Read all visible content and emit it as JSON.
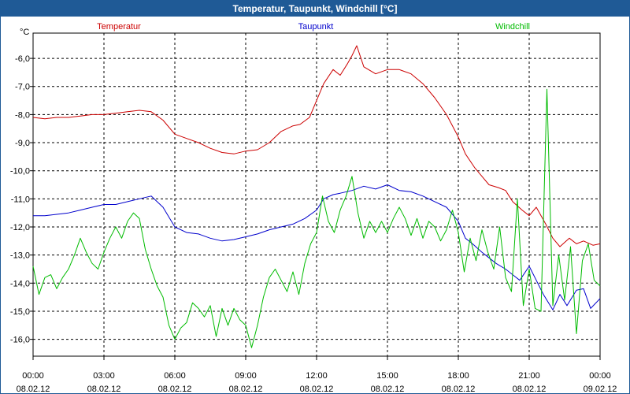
{
  "window": {
    "title": "Temperatur, Taupunkt, Windchill [°C]"
  },
  "colors": {
    "titlebar": "#1f5a96",
    "grid": "#000000"
  },
  "chart_data": {
    "type": "line",
    "title": "Temperatur, Taupunkt, Windchill [°C]",
    "ylabel": "°C",
    "ylim": [
      -16.6,
      -5.1
    ],
    "y_ticks": [
      {
        "value": -6,
        "label": "-6,0"
      },
      {
        "value": -7,
        "label": "-7,0"
      },
      {
        "value": -8,
        "label": "-8,0"
      },
      {
        "value": -9,
        "label": "-9,0"
      },
      {
        "value": -10,
        "label": "-10,0"
      },
      {
        "value": -11,
        "label": "-11,0"
      },
      {
        "value": -12,
        "label": "-12,0"
      },
      {
        "value": -13,
        "label": "-13,0"
      },
      {
        "value": -14,
        "label": "-14,0"
      },
      {
        "value": -15,
        "label": "-15,0"
      },
      {
        "value": -16,
        "label": "-16,0"
      }
    ],
    "xlim": [
      0,
      24
    ],
    "x_ticks": [
      {
        "value": 0,
        "time": "00:00",
        "date": "08.02.12"
      },
      {
        "value": 3,
        "time": "03:00",
        "date": "08.02.12"
      },
      {
        "value": 6,
        "time": "06:00",
        "date": "08.02.12"
      },
      {
        "value": 9,
        "time": "09:00",
        "date": "08.02.12"
      },
      {
        "value": 12,
        "time": "12:00",
        "date": "08.02.12"
      },
      {
        "value": 15,
        "time": "15:00",
        "date": "08.02.12"
      },
      {
        "value": 18,
        "time": "18:00",
        "date": "08.02.12"
      },
      {
        "value": 21,
        "time": "21:00",
        "date": "08.02.12"
      },
      {
        "value": 24,
        "time": "00:00",
        "date": "09.02.12"
      }
    ],
    "grid": true,
    "legend": "top",
    "series": [
      {
        "name": "Temperatur",
        "color": "#cc0000",
        "x": [
          0,
          0.5,
          1,
          1.5,
          2,
          2.5,
          3,
          3.5,
          4,
          4.5,
          5,
          5.5,
          6,
          6.5,
          7,
          7.5,
          8,
          8.5,
          9,
          9.5,
          10,
          10.5,
          11,
          11.3,
          11.7,
          12,
          12.3,
          12.7,
          13,
          13.3,
          13.5,
          13.7,
          14,
          14.5,
          15,
          15.5,
          16,
          16.5,
          17,
          17.5,
          18,
          18.3,
          18.7,
          19,
          19.3,
          19.7,
          20,
          20.3,
          20.7,
          21,
          21.3,
          21.7,
          22,
          22.3,
          22.7,
          23,
          23.3,
          23.7,
          24
        ],
        "y": [
          -8.1,
          -8.15,
          -8.1,
          -8.1,
          -8.05,
          -8.0,
          -8.0,
          -7.95,
          -7.9,
          -7.85,
          -7.9,
          -8.2,
          -8.7,
          -8.85,
          -9.0,
          -9.2,
          -9.35,
          -9.4,
          -9.3,
          -9.25,
          -9.0,
          -8.6,
          -8.4,
          -8.35,
          -8.1,
          -7.5,
          -6.9,
          -6.4,
          -6.6,
          -6.2,
          -5.9,
          -5.55,
          -6.3,
          -6.55,
          -6.4,
          -6.4,
          -6.55,
          -6.9,
          -7.4,
          -8.0,
          -8.8,
          -9.4,
          -9.9,
          -10.2,
          -10.5,
          -10.6,
          -10.7,
          -11.1,
          -11.4,
          -11.6,
          -11.3,
          -11.9,
          -12.4,
          -12.7,
          -12.4,
          -12.6,
          -12.5,
          -12.65,
          -12.6
        ]
      },
      {
        "name": "Taupunkt",
        "color": "#0000cc",
        "x": [
          0,
          0.5,
          1,
          1.5,
          2,
          2.5,
          3,
          3.5,
          4,
          4.5,
          5,
          5.5,
          6,
          6.5,
          7,
          7.5,
          8,
          8.5,
          9,
          9.5,
          10,
          10.5,
          11,
          11.5,
          12,
          12.3,
          12.7,
          13,
          13.5,
          14,
          14.5,
          15,
          15.5,
          16,
          16.5,
          17,
          17.5,
          18,
          18.3,
          18.6,
          19,
          19.3,
          19.6,
          20,
          20.3,
          20.6,
          21,
          21.3,
          21.6,
          22,
          22.3,
          22.6,
          23,
          23.3,
          23.6,
          24
        ],
        "y": [
          -11.6,
          -11.6,
          -11.55,
          -11.5,
          -11.4,
          -11.3,
          -11.2,
          -11.2,
          -11.1,
          -11.0,
          -10.9,
          -11.3,
          -12.0,
          -12.2,
          -12.25,
          -12.4,
          -12.5,
          -12.45,
          -12.35,
          -12.25,
          -12.1,
          -12.0,
          -11.9,
          -11.7,
          -11.4,
          -11.0,
          -10.85,
          -10.8,
          -10.7,
          -10.55,
          -10.65,
          -10.5,
          -10.7,
          -10.75,
          -10.9,
          -11.1,
          -11.3,
          -11.8,
          -12.4,
          -12.6,
          -12.9,
          -13.1,
          -13.3,
          -13.5,
          -13.7,
          -13.9,
          -13.4,
          -13.9,
          -14.4,
          -14.95,
          -14.4,
          -14.8,
          -14.25,
          -14.2,
          -14.9,
          -14.55
        ]
      },
      {
        "name": "Windchill",
        "color": "#00bb00",
        "x": [
          0,
          0.25,
          0.5,
          0.75,
          1,
          1.25,
          1.5,
          1.75,
          2,
          2.25,
          2.5,
          2.75,
          3,
          3.25,
          3.5,
          3.75,
          4,
          4.25,
          4.5,
          4.75,
          5,
          5.25,
          5.5,
          5.75,
          6,
          6.25,
          6.5,
          6.75,
          7,
          7.25,
          7.5,
          7.75,
          8,
          8.25,
          8.5,
          8.75,
          9,
          9.25,
          9.5,
          9.75,
          10,
          10.25,
          10.5,
          10.75,
          11,
          11.25,
          11.5,
          11.75,
          12,
          12.25,
          12.5,
          12.75,
          13,
          13.25,
          13.5,
          13.75,
          14,
          14.25,
          14.5,
          14.75,
          15,
          15.25,
          15.5,
          15.75,
          16,
          16.25,
          16.5,
          16.75,
          17,
          17.25,
          17.5,
          17.75,
          18,
          18.25,
          18.5,
          18.75,
          19,
          19.25,
          19.5,
          19.75,
          20,
          20.25,
          20.5,
          20.75,
          21,
          21.25,
          21.5,
          21.75,
          22,
          22.25,
          22.5,
          22.75,
          23,
          23.25,
          23.5,
          23.75,
          24
        ],
        "y": [
          -13.4,
          -14.4,
          -13.8,
          -13.7,
          -14.2,
          -13.8,
          -13.5,
          -13.0,
          -12.4,
          -12.9,
          -13.3,
          -13.5,
          -12.9,
          -12.4,
          -12.0,
          -12.4,
          -11.8,
          -11.5,
          -11.7,
          -12.8,
          -13.5,
          -14.1,
          -14.5,
          -15.5,
          -16.0,
          -15.6,
          -15.4,
          -14.7,
          -14.9,
          -15.2,
          -14.8,
          -15.9,
          -14.9,
          -15.5,
          -14.9,
          -15.3,
          -15.5,
          -16.3,
          -15.5,
          -14.5,
          -13.8,
          -13.5,
          -13.9,
          -14.3,
          -13.6,
          -14.4,
          -13.3,
          -12.6,
          -12.2,
          -10.9,
          -11.8,
          -12.2,
          -11.4,
          -10.9,
          -10.2,
          -11.5,
          -12.4,
          -11.8,
          -12.2,
          -11.8,
          -12.2,
          -11.7,
          -11.3,
          -11.7,
          -12.3,
          -11.7,
          -12.4,
          -11.8,
          -12.0,
          -12.5,
          -12.1,
          -11.4,
          -12.2,
          -13.6,
          -12.4,
          -13.2,
          -12.1,
          -12.9,
          -13.5,
          -12.0,
          -13.8,
          -14.3,
          -11.0,
          -14.8,
          -13.5,
          -14.9,
          -15.0,
          -7.1,
          -14.8,
          -13.0,
          -14.6,
          -12.7,
          -15.8,
          -13.2,
          -12.6,
          -13.9,
          -14.1
        ]
      }
    ]
  }
}
